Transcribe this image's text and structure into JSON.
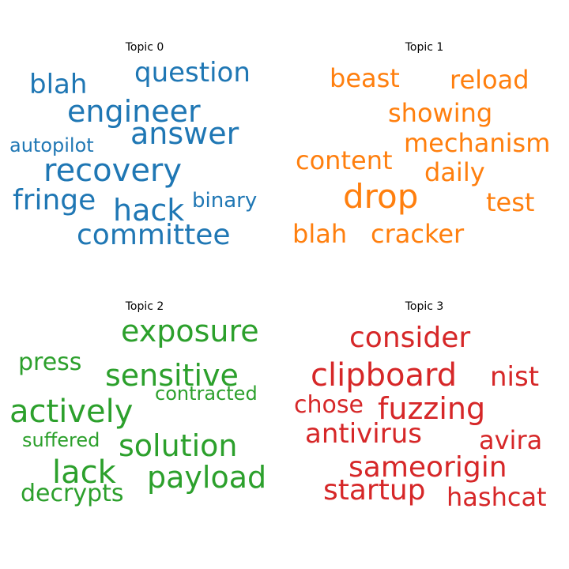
{
  "chart_data": [
    {
      "type": "wordcloud",
      "title": "Topic 0",
      "color": "#1f77b4",
      "words": [
        "question",
        "blah",
        "engineer",
        "answer",
        "autopilot",
        "recovery",
        "fringe",
        "hack",
        "binary",
        "committee"
      ]
    },
    {
      "type": "wordcloud",
      "title": "Topic 1",
      "color": "#ff7f0e",
      "words": [
        "beast",
        "reload",
        "showing",
        "mechanism",
        "content",
        "daily",
        "drop",
        "test",
        "blah",
        "cracker"
      ]
    },
    {
      "type": "wordcloud",
      "title": "Topic 2",
      "color": "#2ca02c",
      "words": [
        "exposure",
        "press",
        "sensitive",
        "contracted",
        "actively",
        "suffered",
        "solution",
        "lack",
        "payload",
        "decrypts"
      ]
    },
    {
      "type": "wordcloud",
      "title": "Topic 3",
      "color": "#d62728",
      "words": [
        "consider",
        "clipboard",
        "nist",
        "chose",
        "fuzzing",
        "antivirus",
        "avira",
        "sameorigin",
        "startup",
        "hashcat"
      ]
    }
  ]
}
